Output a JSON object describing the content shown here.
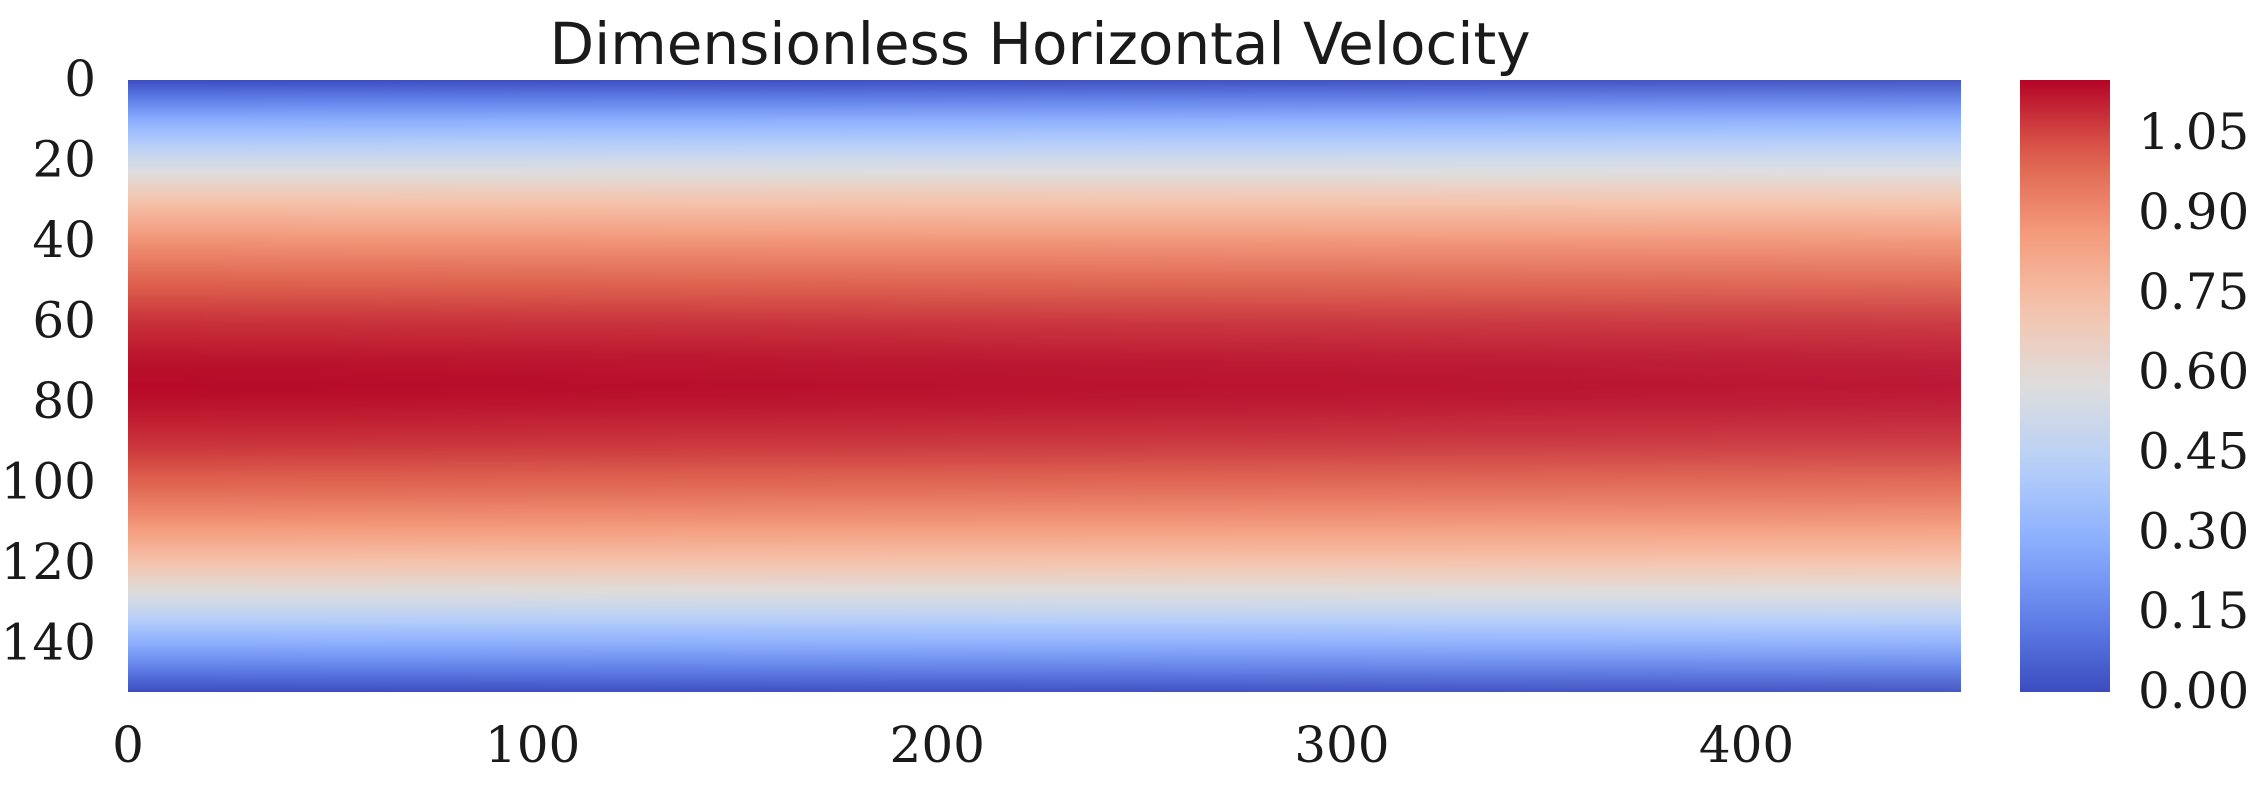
{
  "chart_data": {
    "type": "heatmap",
    "title": "Dimensionless Horizontal Velocity",
    "xlabel": "",
    "ylabel": "",
    "x_range": [
      0,
      453
    ],
    "y_range": [
      0,
      152
    ],
    "x_ticks": [
      0,
      100,
      200,
      300,
      400
    ],
    "y_ticks": [
      0,
      20,
      40,
      60,
      80,
      100,
      120,
      140
    ],
    "y_inverted": true,
    "grid": false,
    "colormap": "coolwarm",
    "color_range": [
      0.0,
      1.15
    ],
    "colorbar_ticks": [
      "0.00",
      "0.15",
      "0.30",
      "0.45",
      "0.60",
      "0.75",
      "0.90",
      "1.05"
    ],
    "colorbar_position": "right",
    "profile": {
      "description_free": true,
      "y": [
        0,
        10,
        20,
        30,
        40,
        50,
        60,
        70,
        76,
        80,
        90,
        100,
        110,
        120,
        130,
        140,
        152
      ],
      "value_left": [
        0.0,
        0.28,
        0.52,
        0.72,
        0.88,
        1.0,
        1.08,
        1.13,
        1.14,
        1.13,
        1.08,
        1.0,
        0.88,
        0.72,
        0.52,
        0.28,
        0.0
      ],
      "value_right": [
        0.0,
        0.28,
        0.52,
        0.72,
        0.88,
        1.0,
        1.07,
        1.1,
        1.11,
        1.1,
        1.06,
        0.98,
        0.86,
        0.7,
        0.5,
        0.27,
        0.0
      ]
    }
  }
}
